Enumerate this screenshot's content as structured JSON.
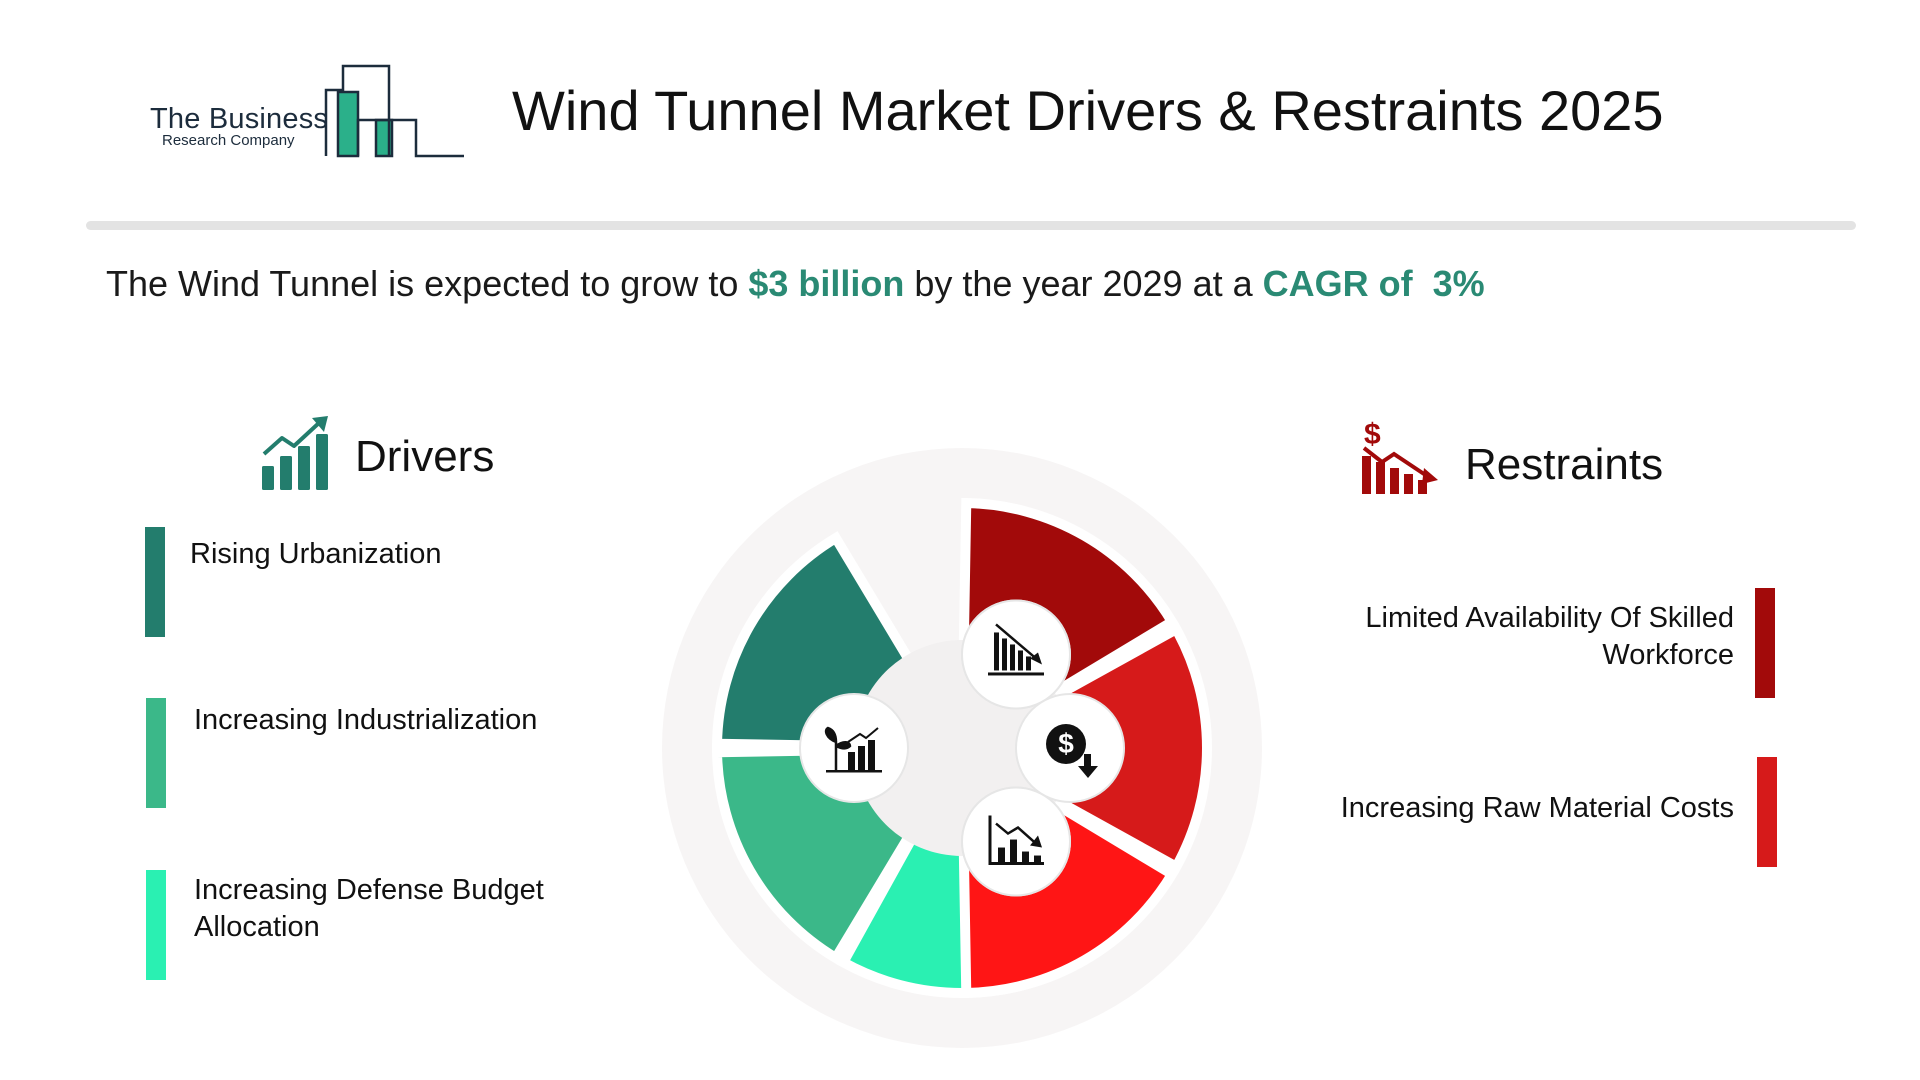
{
  "logo": {
    "line1": "The Business",
    "line2": "Research Company"
  },
  "title": "Wind Tunnel Market Drivers & Restraints 2025",
  "headline": {
    "prefix": "The Wind Tunnel is expected to grow to ",
    "value": "$3 billion",
    "middle": " by the year 2029 at a ",
    "cagr": "CAGR of  3%"
  },
  "drivers": {
    "heading": "Drivers",
    "items": [
      {
        "label": "Rising Urbanization",
        "color": "#237d6d"
      },
      {
        "label": "Increasing Industrialization",
        "color": "#3bb889"
      },
      {
        "label": "Increasing Defense Budget\nAllocation",
        "color": "#2af0b2"
      }
    ]
  },
  "restraints": {
    "heading": "Restraints",
    "items": [
      {
        "label": "Limited Availability Of Skilled\nWorkforce",
        "color": "#a20a0a"
      },
      {
        "label": "Increasing Raw Material Costs",
        "color": "#d61a1a"
      }
    ]
  },
  "colors": {
    "accent_green": "#2a8a74",
    "restraint_red": "#a20a0a",
    "segments": [
      "#237d6d",
      "#3bb889",
      "#2af0b2",
      "#a20a0a",
      "#d61a1a",
      "#ff1515"
    ]
  },
  "wheel_icons": [
    "growth-chart-icon",
    "plant-growth-chart-icon",
    "target-icon",
    "declining-bar-chart-icon",
    "dollar-down-icon",
    "declining-line-chart-icon"
  ]
}
